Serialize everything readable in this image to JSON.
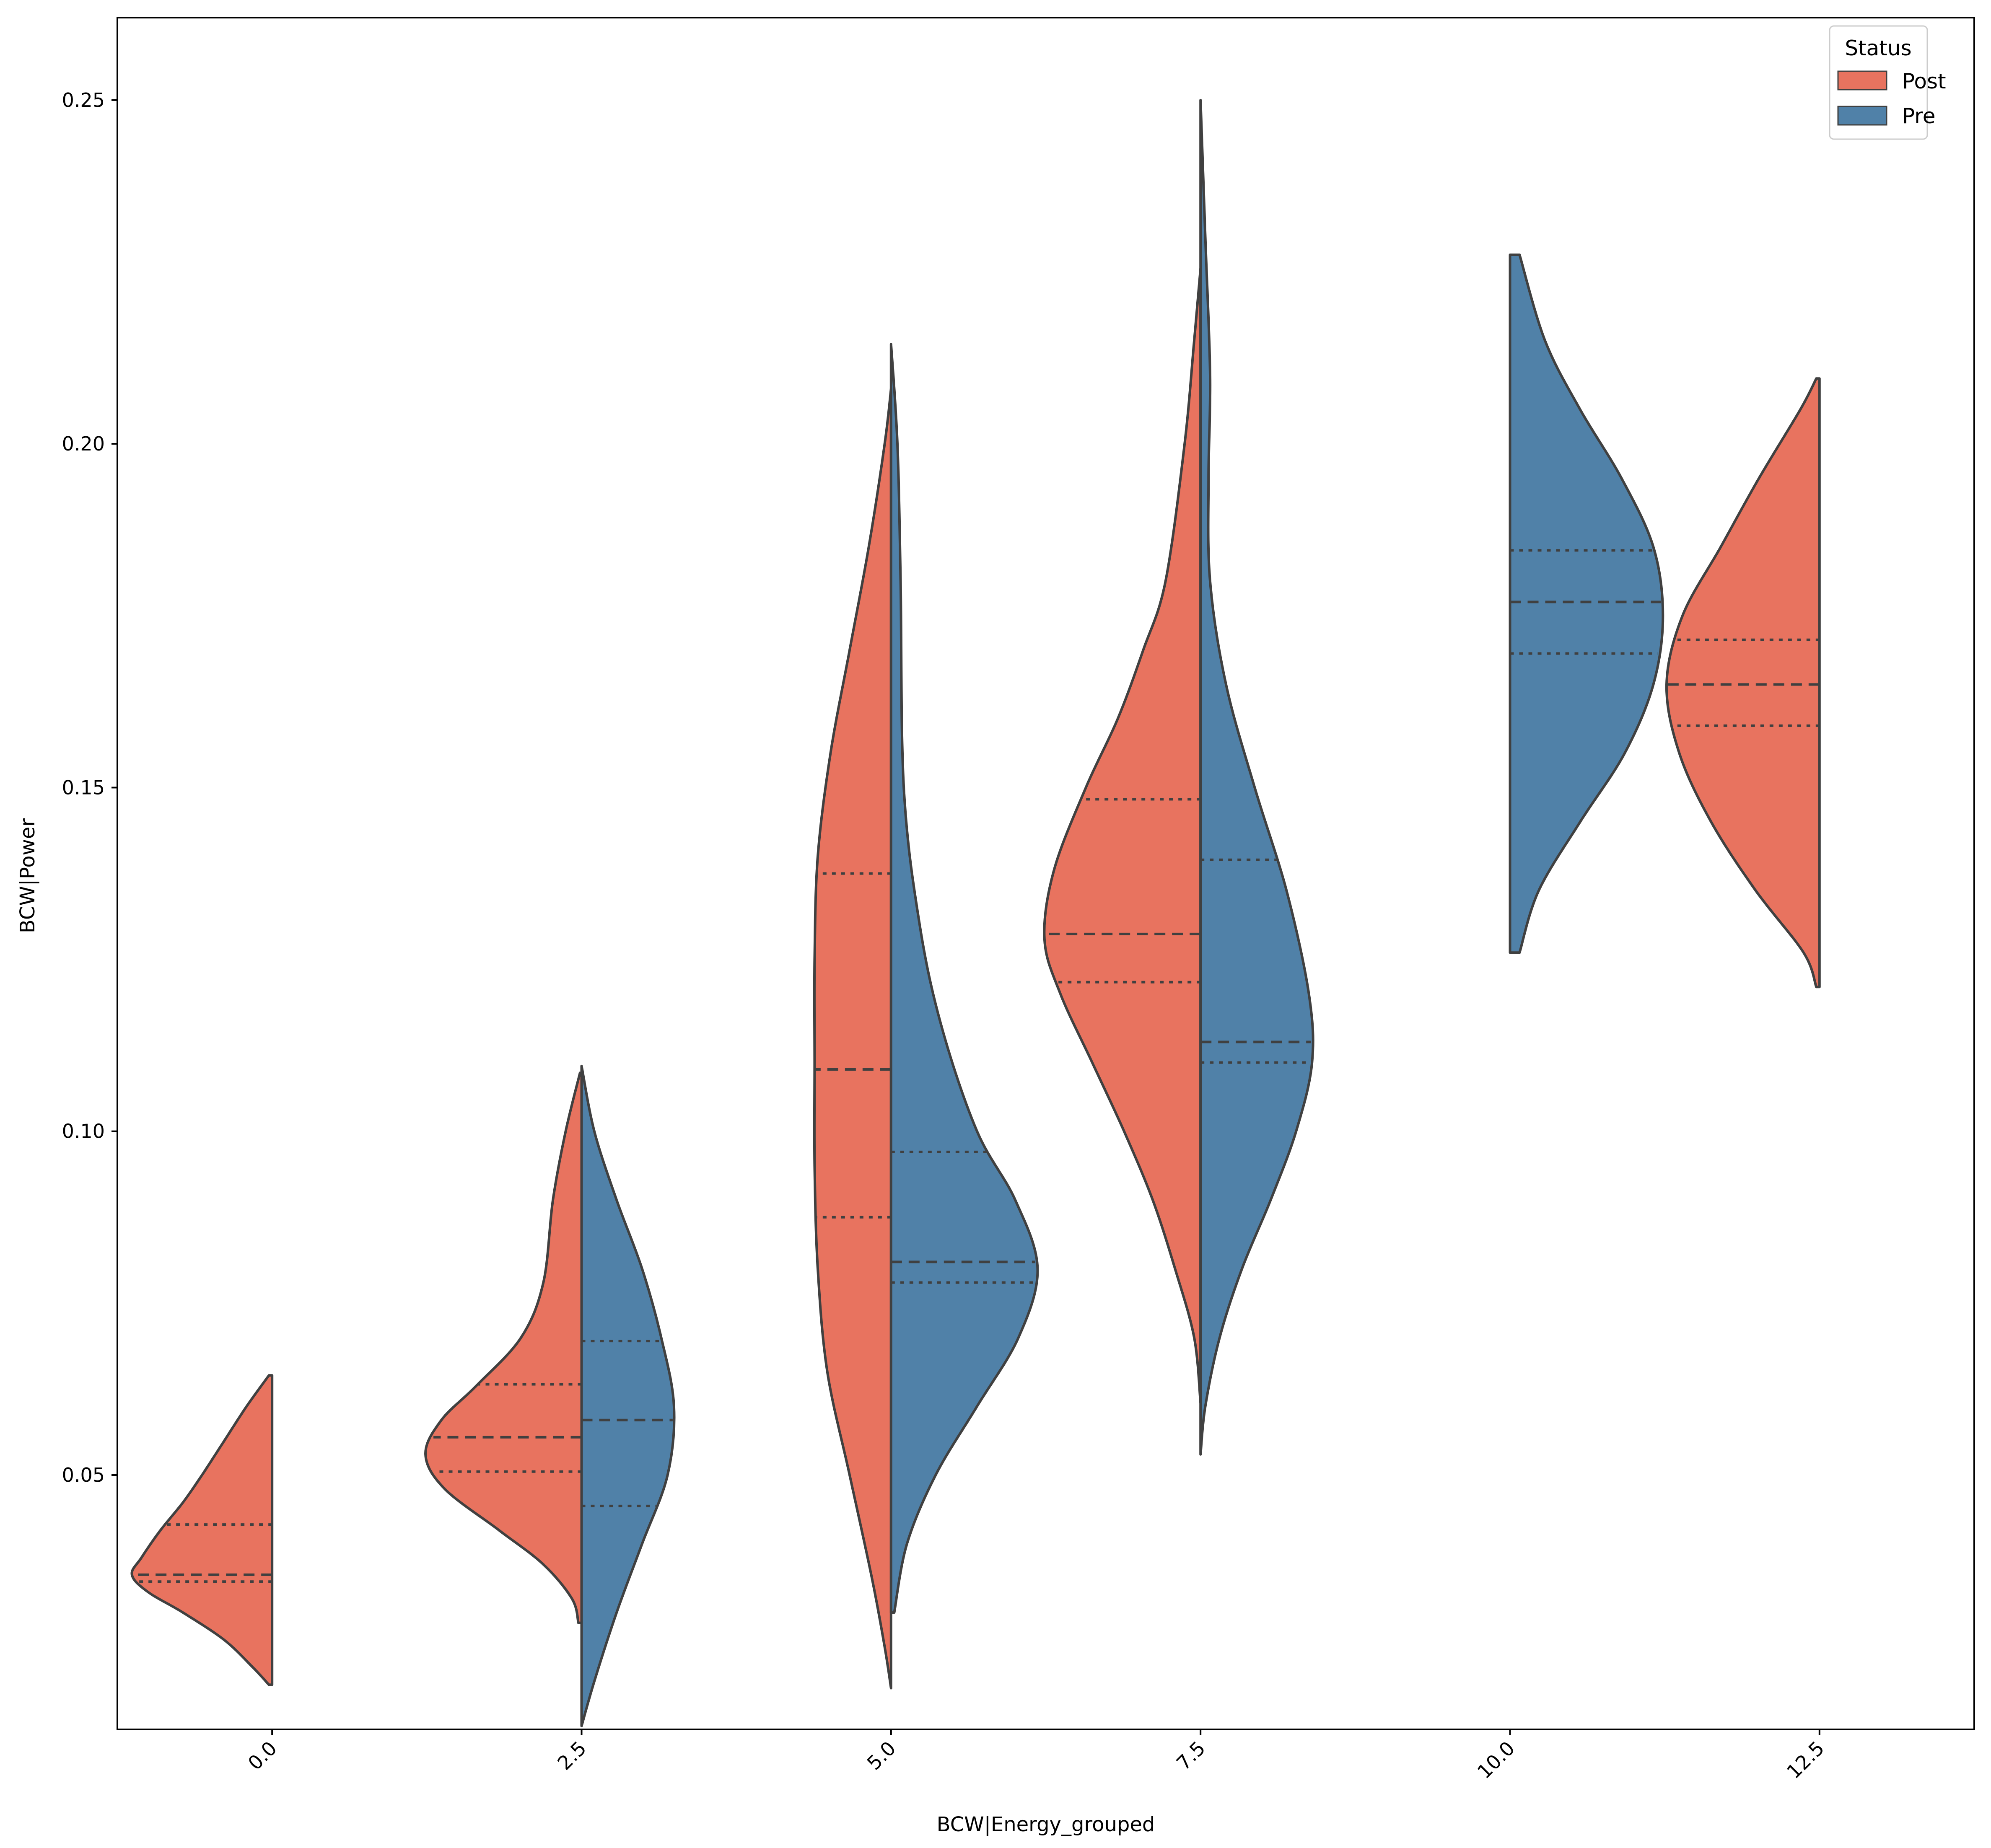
{
  "colors": {
    "post": "#e8735f",
    "pre": "#5081a8",
    "outline": "#404040",
    "axes": "#000000",
    "background": "#ffffff"
  },
  "chart_data": {
    "type": "split-violin",
    "title": "",
    "xlabel": "BCW|Energy_grouped",
    "ylabel": "BCW|Power",
    "ylim": [
      0.013,
      0.262
    ],
    "yticks": [
      0.05,
      0.1,
      0.15,
      0.2,
      0.25
    ],
    "ytick_labels": [
      "0.05",
      "0.10",
      "0.15",
      "0.20",
      "0.25"
    ],
    "xticks": [
      0.0,
      2.5,
      5.0,
      7.5,
      10.0,
      12.5
    ],
    "xtick_labels": [
      "0.0",
      "2.5",
      "5.0",
      "7.5",
      "10.0",
      "12.5"
    ],
    "xlim": [
      -1.25,
      13.75
    ],
    "grid": false,
    "legend": {
      "title": "Status",
      "placement": "top-right",
      "entries": [
        "Post",
        "Pre"
      ]
    },
    "series": [
      {
        "name": "Post",
        "side": "left",
        "violins": [
          {
            "x": 0.0,
            "min": 0.0195,
            "max": 0.0645,
            "q1": 0.0345,
            "median": 0.0355,
            "q3": 0.0428,
            "profile": [
              [
                0.0195,
                0.02
              ],
              [
                0.022,
                0.12
              ],
              [
                0.026,
                0.3
              ],
              [
                0.03,
                0.56
              ],
              [
                0.033,
                0.78
              ],
              [
                0.0355,
                0.88
              ],
              [
                0.038,
                0.82
              ],
              [
                0.042,
                0.7
              ],
              [
                0.046,
                0.56
              ],
              [
                0.05,
                0.44
              ],
              [
                0.055,
                0.3
              ],
              [
                0.06,
                0.16
              ],
              [
                0.0645,
                0.02
              ]
            ]
          },
          {
            "x": 2.5,
            "min": 0.0285,
            "max": 0.1085,
            "q1": 0.0505,
            "median": 0.0555,
            "q3": 0.0632,
            "profile": [
              [
                0.0285,
                0.02
              ],
              [
                0.032,
                0.06
              ],
              [
                0.037,
                0.24
              ],
              [
                0.042,
                0.52
              ],
              [
                0.048,
                0.86
              ],
              [
                0.053,
                0.98
              ],
              [
                0.058,
                0.88
              ],
              [
                0.063,
                0.66
              ],
              [
                0.07,
                0.38
              ],
              [
                0.078,
                0.24
              ],
              [
                0.09,
                0.18
              ],
              [
                0.1,
                0.1
              ],
              [
                0.1085,
                0.01
              ]
            ]
          },
          {
            "x": 5.0,
            "min": 0.019,
            "max": 0.208,
            "q1": 0.0875,
            "median": 0.109,
            "q3": 0.1375,
            "profile": [
              [
                0.019,
                0.0
              ],
              [
                0.025,
                0.04
              ],
              [
                0.035,
                0.12
              ],
              [
                0.05,
                0.26
              ],
              [
                0.065,
                0.4
              ],
              [
                0.08,
                0.46
              ],
              [
                0.095,
                0.48
              ],
              [
                0.11,
                0.48
              ],
              [
                0.125,
                0.48
              ],
              [
                0.14,
                0.46
              ],
              [
                0.155,
                0.38
              ],
              [
                0.17,
                0.26
              ],
              [
                0.185,
                0.14
              ],
              [
                0.2,
                0.04
              ],
              [
                0.208,
                0.0
              ]
            ]
          },
          {
            "x": 7.5,
            "min": 0.0605,
            "max": 0.2255,
            "q1": 0.1217,
            "median": 0.1287,
            "q3": 0.1483,
            "profile": [
              [
                0.0605,
                0.0
              ],
              [
                0.07,
                0.04
              ],
              [
                0.08,
                0.16
              ],
              [
                0.09,
                0.3
              ],
              [
                0.1,
                0.48
              ],
              [
                0.11,
                0.68
              ],
              [
                0.12,
                0.88
              ],
              [
                0.128,
                0.98
              ],
              [
                0.138,
                0.92
              ],
              [
                0.15,
                0.72
              ],
              [
                0.16,
                0.52
              ],
              [
                0.17,
                0.36
              ],
              [
                0.18,
                0.22
              ],
              [
                0.2,
                0.1
              ],
              [
                0.215,
                0.04
              ],
              [
                0.2255,
                0.0
              ]
            ]
          },
          {
            "x": 12.5,
            "min": 0.121,
            "max": 0.2095,
            "q1": 0.159,
            "median": 0.165,
            "q3": 0.1715,
            "profile": [
              [
                0.121,
                0.02
              ],
              [
                0.126,
                0.1
              ],
              [
                0.135,
                0.4
              ],
              [
                0.145,
                0.68
              ],
              [
                0.155,
                0.88
              ],
              [
                0.165,
                0.96
              ],
              [
                0.175,
                0.86
              ],
              [
                0.185,
                0.62
              ],
              [
                0.195,
                0.38
              ],
              [
                0.205,
                0.12
              ],
              [
                0.2095,
                0.02
              ]
            ]
          }
        ]
      },
      {
        "name": "Pre",
        "side": "right",
        "violins": [
          {
            "x": 2.5,
            "min": 0.0135,
            "max": 0.1095,
            "q1": 0.0455,
            "median": 0.058,
            "q3": 0.0695,
            "profile": [
              [
                0.0135,
                0.0
              ],
              [
                0.02,
                0.08
              ],
              [
                0.03,
                0.22
              ],
              [
                0.04,
                0.38
              ],
              [
                0.05,
                0.54
              ],
              [
                0.06,
                0.58
              ],
              [
                0.07,
                0.5
              ],
              [
                0.08,
                0.38
              ],
              [
                0.09,
                0.22
              ],
              [
                0.1,
                0.08
              ],
              [
                0.1095,
                0.0
              ]
            ]
          },
          {
            "x": 5.0,
            "min": 0.03,
            "max": 0.2145,
            "q1": 0.078,
            "median": 0.081,
            "q3": 0.097,
            "profile": [
              [
                0.03,
                0.02
              ],
              [
                0.04,
                0.1
              ],
              [
                0.05,
                0.28
              ],
              [
                0.06,
                0.54
              ],
              [
                0.07,
                0.8
              ],
              [
                0.08,
                0.92
              ],
              [
                0.09,
                0.78
              ],
              [
                0.1,
                0.54
              ],
              [
                0.115,
                0.32
              ],
              [
                0.13,
                0.18
              ],
              [
                0.15,
                0.08
              ],
              [
                0.18,
                0.06
              ],
              [
                0.2,
                0.04
              ],
              [
                0.2145,
                0.0
              ]
            ]
          },
          {
            "x": 7.5,
            "min": 0.053,
            "max": 0.25,
            "q1": 0.11,
            "median": 0.113,
            "q3": 0.1395,
            "profile": [
              [
                0.053,
                0.0
              ],
              [
                0.06,
                0.03
              ],
              [
                0.07,
                0.12
              ],
              [
                0.08,
                0.26
              ],
              [
                0.09,
                0.44
              ],
              [
                0.1,
                0.6
              ],
              [
                0.11,
                0.7
              ],
              [
                0.12,
                0.68
              ],
              [
                0.135,
                0.54
              ],
              [
                0.15,
                0.34
              ],
              [
                0.165,
                0.16
              ],
              [
                0.18,
                0.06
              ],
              [
                0.195,
                0.05
              ],
              [
                0.21,
                0.06
              ],
              [
                0.23,
                0.03
              ],
              [
                0.25,
                0.0
              ]
            ]
          },
          {
            "x": 10.0,
            "min": 0.126,
            "max": 0.2275,
            "q1": 0.1695,
            "median": 0.177,
            "q3": 0.1845,
            "profile": [
              [
                0.126,
                0.06
              ],
              [
                0.135,
                0.18
              ],
              [
                0.145,
                0.44
              ],
              [
                0.155,
                0.72
              ],
              [
                0.165,
                0.9
              ],
              [
                0.175,
                0.96
              ],
              [
                0.185,
                0.9
              ],
              [
                0.195,
                0.7
              ],
              [
                0.205,
                0.44
              ],
              [
                0.215,
                0.22
              ],
              [
                0.2275,
                0.06
              ]
            ]
          }
        ]
      }
    ]
  }
}
